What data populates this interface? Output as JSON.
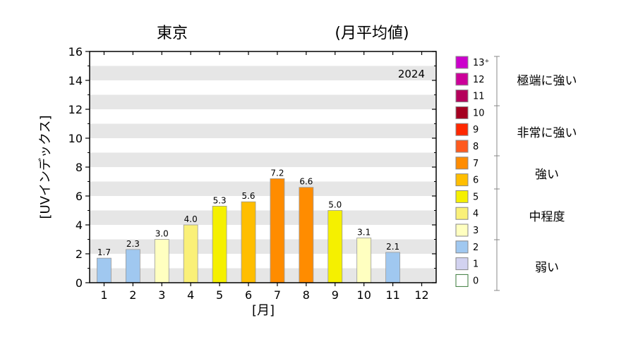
{
  "header": {
    "location": "東京",
    "subtitle": "(月平均値)"
  },
  "chart_data": {
    "type": "bar",
    "year_label": "2024",
    "ylabel": "[UVインデックス]",
    "xlabel": "[月]",
    "ylim": [
      0,
      16
    ],
    "yticks": [
      "0",
      "2",
      "4",
      "6",
      "8",
      "10",
      "12",
      "14",
      "16"
    ],
    "categories": [
      "1",
      "2",
      "3",
      "4",
      "5",
      "6",
      "7",
      "8",
      "9",
      "10",
      "11",
      "12"
    ],
    "values": [
      1.7,
      2.3,
      3.0,
      4.0,
      5.3,
      5.6,
      7.2,
      6.6,
      5.0,
      3.1,
      2.1,
      null
    ],
    "value_labels": [
      "1.7",
      "2.3",
      "3.0",
      "4.0",
      "5.3",
      "5.6",
      "7.2",
      "6.6",
      "5.0",
      "3.1",
      "2.1",
      ""
    ],
    "grid": "horizontal gray bands",
    "legend_position": "right"
  },
  "legend": {
    "levels": [
      {
        "label": "13⁺",
        "color": "#cc00cc"
      },
      {
        "label": "12",
        "color": "#cc0099"
      },
      {
        "label": "11",
        "color": "#b5005b"
      },
      {
        "label": "10",
        "color": "#a50021"
      },
      {
        "label": "9",
        "color": "#ff2800"
      },
      {
        "label": "8",
        "color": "#ff5a1e"
      },
      {
        "label": "7",
        "color": "#ff8c00"
      },
      {
        "label": "6",
        "color": "#ffbe00"
      },
      {
        "label": "5",
        "color": "#f5f000"
      },
      {
        "label": "4",
        "color": "#faf078"
      },
      {
        "label": "3",
        "color": "#ffffc0"
      },
      {
        "label": "2",
        "color": "#a0c8f0"
      },
      {
        "label": "1",
        "color": "#d2d2f0"
      },
      {
        "label": "0",
        "color": "#ffffff"
      }
    ],
    "categories": [
      {
        "label": "極端に強い"
      },
      {
        "label": "非常に強い"
      },
      {
        "label": "強い"
      },
      {
        "label": "中程度"
      },
      {
        "label": "弱い"
      }
    ]
  }
}
